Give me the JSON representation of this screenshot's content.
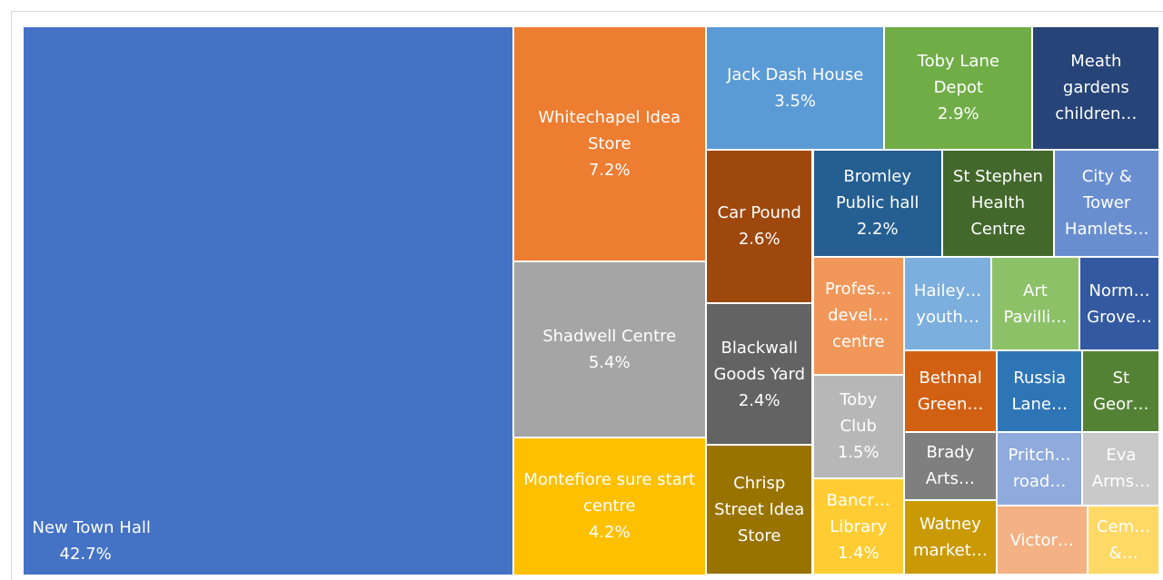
{
  "chart_data": {
    "type": "treemap",
    "categories": [
      "New Town Hall",
      "Whitechapel Idea Store",
      "Shadwell Centre",
      "Montefiore sure start centre",
      "Jack Dash House",
      "Toby Lane Depot",
      "Meath gardens children…",
      "Car Pound",
      "Blackwall Goods Yard",
      "Chrisp Street Idea Store",
      "Bromley Public hall",
      "St Stephen Health Centre",
      "City & Tower Hamlets…",
      "Profes… devel… centre",
      "Toby Club",
      "Bancr… Library",
      "Hailey… youth…",
      "Art Pavilli…",
      "Norm… Grove…",
      "Bethnal Green…",
      "Russia Lane…",
      "St Geor…",
      "Brady Arts…",
      "Watney market…",
      "Pritch… road…",
      "Eva Arms…",
      "Victor…",
      "Cem… &…"
    ],
    "values": [
      42.7,
      7.2,
      5.4,
      4.2,
      3.5,
      2.9,
      2.5,
      2.6,
      2.4,
      2.2,
      2.2,
      1.9,
      1.8,
      1.7,
      1.5,
      1.4,
      1.3,
      1.3,
      1.2,
      1.2,
      1.1,
      1.0,
      1.0,
      1.1,
      1.0,
      0.9,
      1.0,
      0.8
    ],
    "value_labels": [
      "42.7%",
      "7.2%",
      "5.4%",
      "4.2%",
      "3.5%",
      "2.9%",
      null,
      "2.6%",
      "2.4%",
      null,
      "2.2%",
      null,
      null,
      null,
      "1.5%",
      "1.4%",
      null,
      null,
      null,
      null,
      null,
      null,
      null,
      null,
      null,
      null,
      null,
      null
    ],
    "colors": [
      "#4472c4",
      "#ed7d31",
      "#a5a5a5",
      "#ffc000",
      "#5b9bd5",
      "#70ad47",
      "#264478",
      "#9e480e",
      "#636363",
      "#997300",
      "#255e91",
      "#43682b",
      "#698ed0",
      "#f1975a",
      "#b7b7b7",
      "#ffcd33",
      "#7cafdd",
      "#8cc168",
      "#335aa1",
      "#d26012",
      "#2e75b6",
      "#548235",
      "#7f7f7f",
      "#c99a06",
      "#8faadc",
      "#c9c9c9",
      "#f4b183",
      "#ffd966"
    ]
  }
}
